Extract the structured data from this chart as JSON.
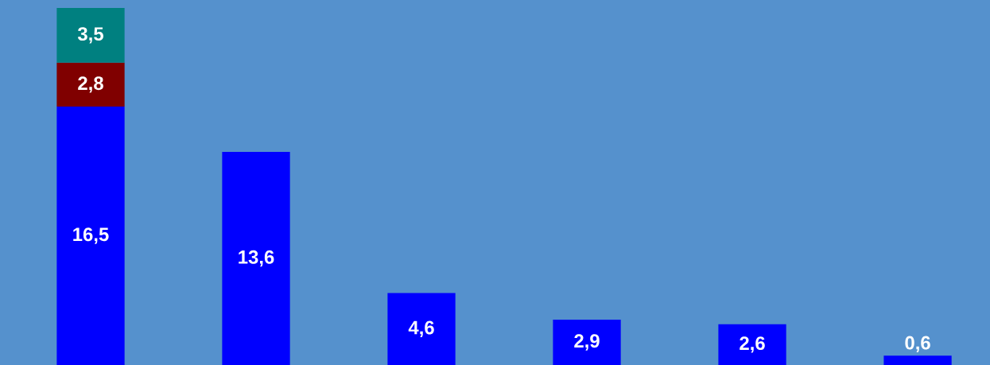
{
  "chart_data": {
    "type": "bar",
    "stacked": true,
    "categories": [
      null,
      null,
      null,
      null,
      null,
      null
    ],
    "series": [
      {
        "color": "#0000ff",
        "values": [
          16.5,
          13.6,
          4.6,
          2.9,
          2.6,
          0.6
        ],
        "value_labels": [
          "16,5",
          "13,6",
          "4,6",
          "2,9",
          "2,6",
          "0,6"
        ]
      },
      {
        "color": "#800000",
        "values": [
          2.8,
          null,
          null,
          null,
          null,
          null
        ],
        "value_labels": [
          "2,8",
          null,
          null,
          null,
          null,
          null
        ]
      },
      {
        "color": "#008080",
        "values": [
          3.5,
          null,
          null,
          null,
          null,
          null
        ],
        "value_labels": [
          "3,5",
          null,
          null,
          null,
          null,
          null
        ]
      }
    ],
    "tick_labels": false
  }
}
